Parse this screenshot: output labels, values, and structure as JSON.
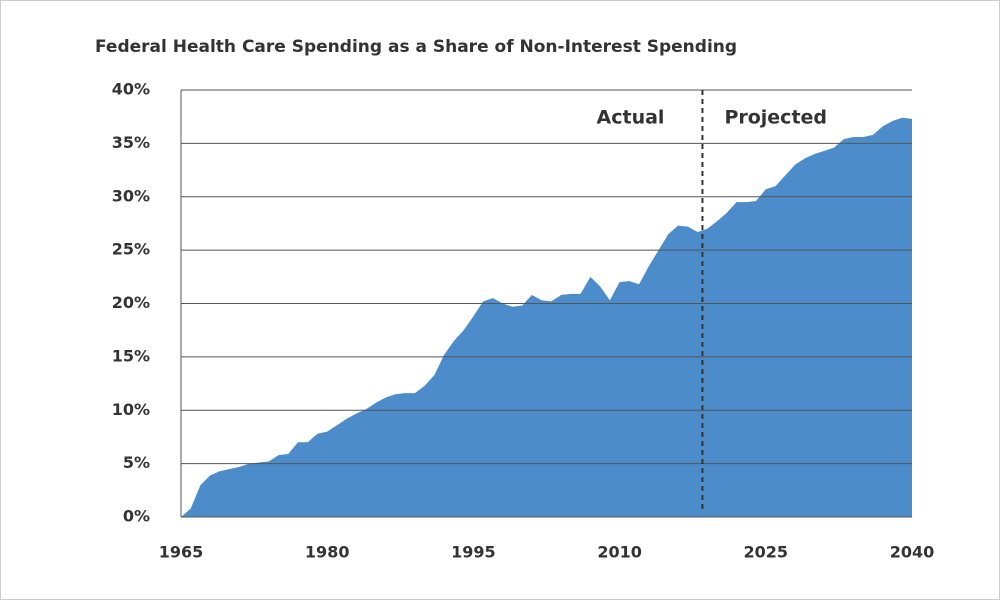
{
  "chart_data": {
    "type": "area",
    "title": "Federal Health Care Spending as a Share of Non-Interest Spending",
    "x": [
      1965,
      1966,
      1967,
      1968,
      1969,
      1970,
      1971,
      1972,
      1973,
      1974,
      1975,
      1976,
      1977,
      1978,
      1979,
      1980,
      1981,
      1982,
      1983,
      1984,
      1985,
      1986,
      1987,
      1988,
      1989,
      1990,
      1991,
      1992,
      1993,
      1994,
      1995,
      1996,
      1997,
      1998,
      1999,
      2000,
      2001,
      2002,
      2003,
      2004,
      2005,
      2006,
      2007,
      2008,
      2009,
      2010,
      2011,
      2012,
      2013,
      2014,
      2015,
      2016,
      2017,
      2018,
      2019,
      2020,
      2021,
      2022,
      2023,
      2024,
      2025,
      2026,
      2027,
      2028,
      2029,
      2030,
      2031,
      2032,
      2033,
      2034,
      2035,
      2036,
      2037,
      2038,
      2039,
      2040
    ],
    "values": [
      0,
      0.8,
      3.0,
      3.9,
      4.3,
      4.5,
      4.7,
      5.0,
      5.1,
      5.2,
      5.8,
      5.9,
      7.0,
      7.0,
      7.8,
      8.0,
      8.6,
      9.2,
      9.7,
      10.1,
      10.7,
      11.2,
      11.5,
      11.6,
      11.6,
      12.3,
      13.3,
      15.2,
      16.5,
      17.5,
      18.8,
      20.2,
      20.5,
      20.0,
      19.7,
      19.8,
      20.8,
      20.3,
      20.2,
      20.8,
      20.9,
      20.9,
      22.5,
      21.6,
      20.3,
      22.0,
      22.1,
      21.8,
      23.5,
      25.0,
      26.5,
      27.3,
      27.2,
      26.7,
      27.0,
      27.7,
      28.5,
      29.5,
      29.5,
      29.6,
      30.7,
      31.0,
      32.0,
      33.0,
      33.6,
      34.0,
      34.3,
      34.6,
      35.4,
      35.6,
      35.6,
      35.8,
      36.6,
      37.1,
      37.4,
      37.3
    ],
    "color": "#4d8ccb",
    "xlim": [
      1965,
      2040
    ],
    "xticks": [
      1965,
      1980,
      1995,
      2010,
      2025,
      2040
    ],
    "ylim": [
      0,
      40
    ],
    "yticks": [
      {
        "value": 0,
        "label": "0%"
      },
      {
        "value": 5,
        "label": "5%"
      },
      {
        "value": 10,
        "label": "10%"
      },
      {
        "value": 15,
        "label": "15%"
      },
      {
        "value": 20,
        "label": "20%"
      },
      {
        "value": 25,
        "label": "25%"
      },
      {
        "value": 30,
        "label": "30%"
      },
      {
        "value": 35,
        "label": "35%"
      },
      {
        "value": 40,
        "label": "40%"
      }
    ],
    "grid": true,
    "divider": {
      "x": 2018.5,
      "left_label": "Actual",
      "right_label": "Projected"
    }
  }
}
